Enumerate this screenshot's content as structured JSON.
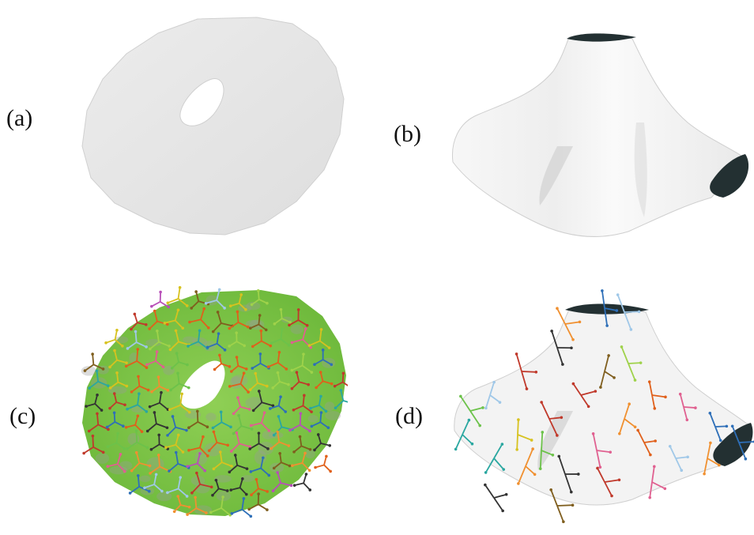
{
  "panels": [
    {
      "id": "a",
      "label": "(a)",
      "surface": "annulus-disk-plain"
    },
    {
      "id": "b",
      "label": "(b)",
      "surface": "draped-sheet-plain"
    },
    {
      "id": "c",
      "label": "(c)",
      "surface": "annulus-disk-frame-field"
    },
    {
      "id": "d",
      "label": "(d)",
      "surface": "draped-sheet-frame-field"
    }
  ],
  "colors": {
    "disk_fill": "#e6e6e6",
    "sheet_fill": "#f4f4f4",
    "sheet_shadow": "#c9c9c9",
    "hole_dark": "#233032",
    "field_green": "#7ac143",
    "field_grey": "#9a9a9a",
    "frame_palette": [
      "#e0601b",
      "#2e6fb8",
      "#2aa7a0",
      "#9fd24a",
      "#b84fb8",
      "#d7c21f",
      "#c0392b",
      "#7f5e1e",
      "#333333",
      "#f09030",
      "#6cc24a",
      "#a0c8e8",
      "#e06090"
    ]
  }
}
